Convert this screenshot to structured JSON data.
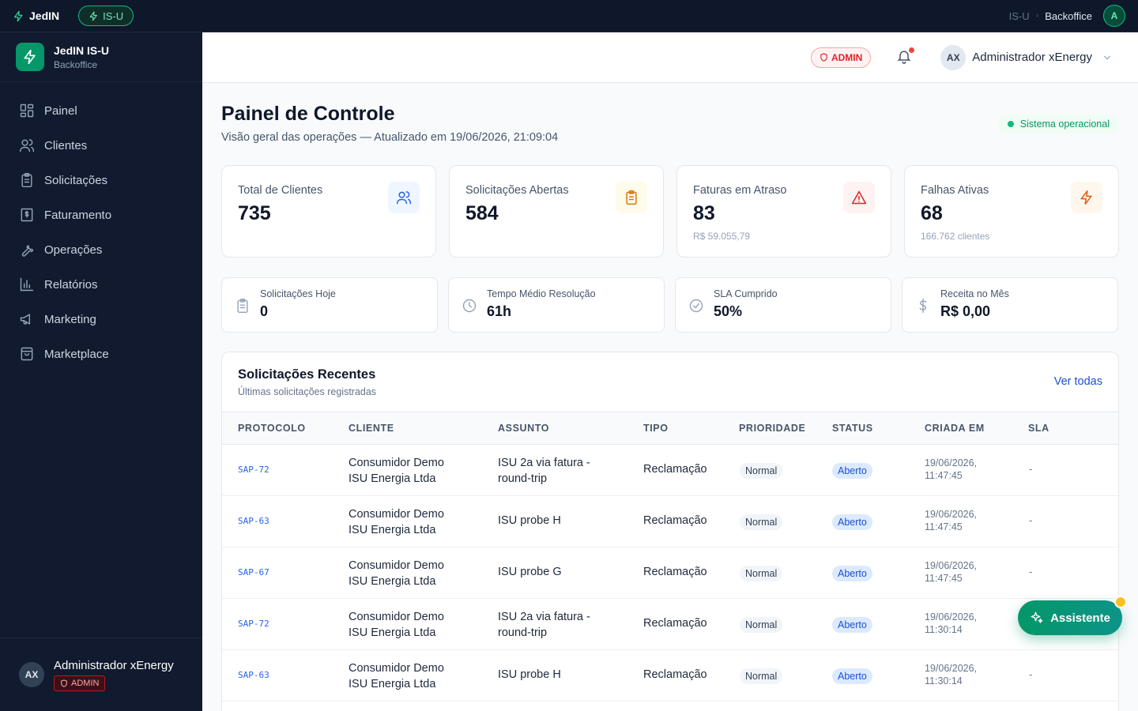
{
  "topbar": {
    "brand": "JedIN",
    "module_pill": "IS-U",
    "breadcrumb_root": "IS-U",
    "breadcrumb_sep": "›",
    "breadcrumb_current": "Backoffice",
    "avatar_initial": "A"
  },
  "sidebar": {
    "title": "JedIN IS-U",
    "subtitle": "Backoffice",
    "items": [
      {
        "label": "Painel",
        "icon": "grid-icon"
      },
      {
        "label": "Clientes",
        "icon": "users-icon"
      },
      {
        "label": "Solicitações",
        "icon": "clipboard-icon"
      },
      {
        "label": "Faturamento",
        "icon": "receipt-icon"
      },
      {
        "label": "Operações",
        "icon": "wrench-icon"
      },
      {
        "label": "Relatórios",
        "icon": "bar-chart-icon"
      },
      {
        "label": "Marketing",
        "icon": "megaphone-icon"
      },
      {
        "label": "Marketplace",
        "icon": "shopping-bag-icon"
      }
    ],
    "user": {
      "initials": "AX",
      "name": "Administrador xEnergy",
      "role": "ADMIN"
    }
  },
  "header": {
    "admin_badge": "ADMIN",
    "user_initials": "AX",
    "user_name": "Administrador xEnergy"
  },
  "main": {
    "title": "Painel de Controle",
    "subtitle": "Visão geral das operações — Atualizado em 19/06/2026, 21:09:04",
    "system_status": "Sistema operacional",
    "kpis": [
      {
        "label": "Total de Clientes",
        "value": "735",
        "sub": "",
        "icon": "users-icon",
        "color": "#2563eb",
        "bg": "#eff6ff"
      },
      {
        "label": "Solicitações Abertas",
        "value": "584",
        "sub": "",
        "icon": "clipboard-icon",
        "color": "#d97706",
        "bg": "#fffbeb"
      },
      {
        "label": "Faturas em Atraso",
        "value": "83",
        "sub": "R$ 59.055,79",
        "icon": "alert-triangle-icon",
        "color": "#dc2626",
        "bg": "#fef2f2"
      },
      {
        "label": "Falhas Ativas",
        "value": "68",
        "sub": "166.762 clientes",
        "icon": "zap-icon",
        "color": "#ea580c",
        "bg": "#fff7ed"
      }
    ],
    "minis": [
      {
        "label": "Solicitações Hoje",
        "value": "0",
        "icon": "clipboard-icon"
      },
      {
        "label": "Tempo Médio Resolução",
        "value": "61h",
        "icon": "clock-icon"
      },
      {
        "label": "SLA Cumprido",
        "value": "50%",
        "icon": "check-circle-icon"
      },
      {
        "label": "Receita no Mês",
        "value": "R$ 0,00",
        "icon": "dollar-icon"
      }
    ],
    "recent": {
      "title": "Solicitações Recentes",
      "subtitle": "Últimas solicitações registradas",
      "view_all": "Ver todas",
      "columns": [
        "PROTOCOLO",
        "CLIENTE",
        "ASSUNTO",
        "TIPO",
        "PRIORIDADE",
        "STATUS",
        "CRIADA EM",
        "SLA"
      ],
      "rows": [
        {
          "protocolo": "SAP-72",
          "cliente_1": "Consumidor Demo",
          "cliente_2": "ISU Energia Ltda",
          "assunto_1": "ISU 2a via fatura -",
          "assunto_2": "round-trip",
          "tipo": "Reclamação",
          "prioridade": "Normal",
          "status": "Aberto",
          "data_1": "19/06/2026,",
          "data_2": "11:47:45",
          "sla": "-"
        },
        {
          "protocolo": "SAP-63",
          "cliente_1": "Consumidor Demo",
          "cliente_2": "ISU Energia Ltda",
          "assunto_1": "ISU probe H",
          "assunto_2": "",
          "tipo": "Reclamação",
          "prioridade": "Normal",
          "status": "Aberto",
          "data_1": "19/06/2026,",
          "data_2": "11:47:45",
          "sla": "-"
        },
        {
          "protocolo": "SAP-67",
          "cliente_1": "Consumidor Demo",
          "cliente_2": "ISU Energia Ltda",
          "assunto_1": "ISU probe G",
          "assunto_2": "",
          "tipo": "Reclamação",
          "prioridade": "Normal",
          "status": "Aberto",
          "data_1": "19/06/2026,",
          "data_2": "11:47:45",
          "sla": "-"
        },
        {
          "protocolo": "SAP-72",
          "cliente_1": "Consumidor Demo",
          "cliente_2": "ISU Energia Ltda",
          "assunto_1": "ISU 2a via fatura -",
          "assunto_2": "round-trip",
          "tipo": "Reclamação",
          "prioridade": "Normal",
          "status": "Aberto",
          "data_1": "19/06/2026,",
          "data_2": "11:30:14",
          "sla": "-"
        },
        {
          "protocolo": "SAP-63",
          "cliente_1": "Consumidor Demo",
          "cliente_2": "ISU Energia Ltda",
          "assunto_1": "ISU probe H",
          "assunto_2": "",
          "tipo": "Reclamação",
          "prioridade": "Normal",
          "status": "Aberto",
          "data_1": "19/06/2026,",
          "data_2": "11:30:14",
          "sla": "-"
        }
      ]
    }
  },
  "assistant": {
    "label": "Assistente",
    "icon": "sparkles-icon"
  }
}
